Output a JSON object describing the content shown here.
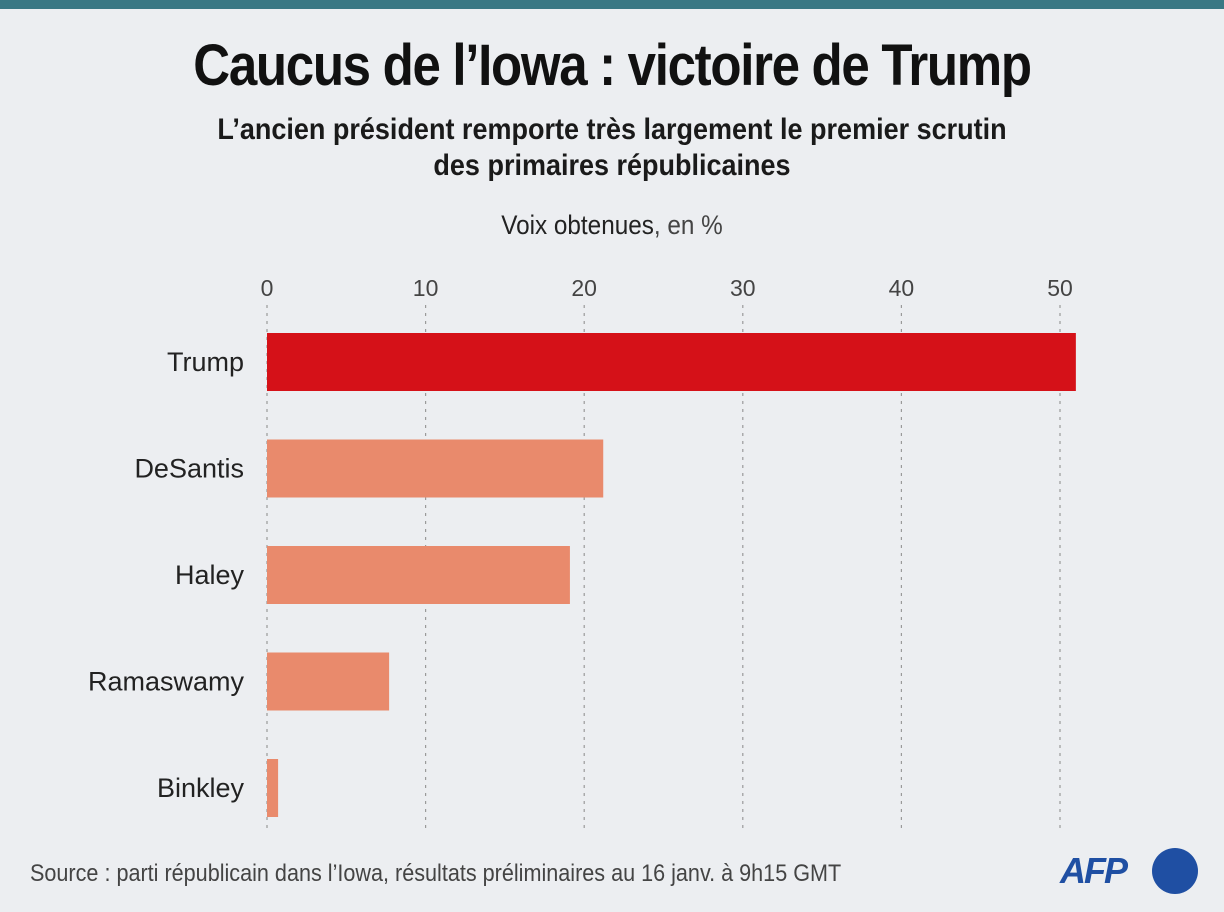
{
  "header": {
    "title": "Caucus de l’Iowa : victoire de Trump",
    "subtitle_line1": "L’ancien président remporte très largement le premier scrutin",
    "subtitle_line2": "des primaires républicaines"
  },
  "footer": {
    "source": "Source : parti républicain dans l’Iowa, résultats préliminaires au 16 janv. à 9h15 GMT",
    "logo_text": "AFP"
  },
  "colors": {
    "background": "#eceef1",
    "top_bar": "#3a7884",
    "highlight_bar": "#d51118",
    "other_bar": "#e98a6c",
    "logo": "#1f4fa3"
  },
  "chart_data": {
    "type": "bar",
    "orientation": "horizontal",
    "title": "Caucus de l’Iowa : victoire de Trump",
    "subtitle": "L’ancien président remporte très largement le premier scrutin des primaires républicaines",
    "xlabel": "Voix obtenues",
    "xlabel_unit": ", en %",
    "ylabel": "",
    "categories": [
      "Trump",
      "DeSantis",
      "Haley",
      "Ramaswamy",
      "Binkley"
    ],
    "values": [
      51.0,
      21.2,
      19.1,
      7.7,
      0.7
    ],
    "highlight": "Trump",
    "xlim": [
      0,
      51
    ],
    "xticks": [
      0,
      10,
      20,
      30,
      40,
      50
    ],
    "xtick_labels": [
      "0",
      "10",
      "20",
      "30",
      "40",
      "50"
    ],
    "grid": "vertical dotted",
    "axis_position": "top",
    "legend": "none"
  }
}
